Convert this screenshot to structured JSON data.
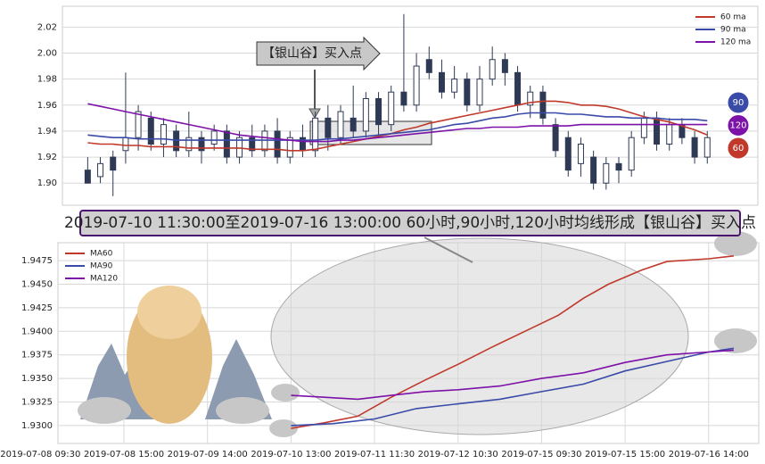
{
  "chart_data": [
    {
      "type": "candlestick",
      "annotation": "【银山谷】买入点",
      "xlim": [
        -2,
        53
      ],
      "ylim": [
        1.883,
        2.036
      ],
      "yticks": [
        {
          "value": 1.9,
          "label": "1.90"
        },
        1.92,
        1.94,
        1.96,
        1.98,
        {
          "value": 2.0,
          "label": "2.00"
        },
        2.02
      ],
      "grid": true,
      "legend": "upper right",
      "candles": {
        "open": [
          1.91,
          1.905,
          1.92,
          1.925,
          1.935,
          1.95,
          1.93,
          1.94,
          1.925,
          1.935,
          1.93,
          1.94,
          1.92,
          1.935,
          1.925,
          1.94,
          1.92,
          1.935,
          1.925,
          1.95,
          1.935,
          1.95,
          1.94,
          1.965,
          1.945,
          1.97,
          1.96,
          1.995,
          1.985,
          1.97,
          1.98,
          1.96,
          1.98,
          1.995,
          1.985,
          1.96,
          1.97,
          1.945,
          1.935,
          1.915,
          1.92,
          1.9,
          1.915,
          1.91,
          1.935,
          1.95,
          1.93,
          1.945,
          1.935,
          1.92
        ],
        "close": [
          1.9,
          1.915,
          1.91,
          1.935,
          1.955,
          1.93,
          1.945,
          1.925,
          1.935,
          1.925,
          1.94,
          1.92,
          1.935,
          1.925,
          1.94,
          1.92,
          1.935,
          1.925,
          1.95,
          1.935,
          1.955,
          1.94,
          1.965,
          1.945,
          1.97,
          1.96,
          1.99,
          1.985,
          1.97,
          1.98,
          1.96,
          1.98,
          1.995,
          1.985,
          1.96,
          1.97,
          1.95,
          1.925,
          1.91,
          1.93,
          1.9,
          1.915,
          1.91,
          1.935,
          1.95,
          1.93,
          1.945,
          1.935,
          1.92,
          1.935
        ],
        "high": [
          1.92,
          1.92,
          1.925,
          1.985,
          1.96,
          1.955,
          1.95,
          1.945,
          1.955,
          1.94,
          1.945,
          1.945,
          1.94,
          1.945,
          1.945,
          1.95,
          1.94,
          1.945,
          1.955,
          1.96,
          1.96,
          1.975,
          1.97,
          1.97,
          1.975,
          2.03,
          2.0,
          2.005,
          1.995,
          1.99,
          1.985,
          1.99,
          2.005,
          2.0,
          1.99,
          1.975,
          1.975,
          1.95,
          1.94,
          1.935,
          1.925,
          1.92,
          1.92,
          1.94,
          1.955,
          1.955,
          1.95,
          1.95,
          1.94,
          1.94
        ],
        "low": [
          1.9,
          1.9,
          1.89,
          1.915,
          1.925,
          1.925,
          1.92,
          1.92,
          1.92,
          1.915,
          1.925,
          1.915,
          1.915,
          1.92,
          1.92,
          1.915,
          1.915,
          1.92,
          1.92,
          1.925,
          1.93,
          1.935,
          1.935,
          1.935,
          1.94,
          1.955,
          1.955,
          1.98,
          1.965,
          1.965,
          1.955,
          1.955,
          1.975,
          1.975,
          1.955,
          1.95,
          1.945,
          1.92,
          1.905,
          1.905,
          1.895,
          1.895,
          1.9,
          1.905,
          1.93,
          1.925,
          1.925,
          1.93,
          1.915,
          1.915
        ]
      },
      "series": [
        {
          "name": "60 ma",
          "color": "#c0392b",
          "tag": 60,
          "values": [
            1.931,
            1.93,
            1.93,
            1.929,
            1.929,
            1.928,
            1.928,
            1.928,
            1.927,
            1.927,
            1.927,
            1.927,
            1.927,
            1.926,
            1.926,
            1.926,
            1.925,
            1.925,
            1.926,
            1.928,
            1.93,
            1.932,
            1.934,
            1.936,
            1.938,
            1.941,
            1.943,
            1.946,
            1.948,
            1.95,
            1.952,
            1.954,
            1.956,
            1.958,
            1.96,
            1.962,
            1.963,
            1.963,
            1.962,
            1.96,
            1.96,
            1.959,
            1.957,
            1.954,
            1.951,
            1.949,
            1.947,
            1.944,
            1.941,
            1.937
          ]
        },
        {
          "name": "90 ma",
          "color": "#3a4aa8",
          "tag": 90,
          "values": [
            1.937,
            1.936,
            1.935,
            1.935,
            1.934,
            1.934,
            1.934,
            1.933,
            1.933,
            1.933,
            1.933,
            1.933,
            1.933,
            1.933,
            1.933,
            1.933,
            1.933,
            1.933,
            1.933,
            1.934,
            1.934,
            1.935,
            1.936,
            1.937,
            1.938,
            1.939,
            1.94,
            1.941,
            1.943,
            1.945,
            1.946,
            1.948,
            1.95,
            1.951,
            1.953,
            1.954,
            1.954,
            1.954,
            1.953,
            1.953,
            1.952,
            1.951,
            1.951,
            1.95,
            1.95,
            1.95,
            1.949,
            1.949,
            1.949,
            1.948
          ]
        },
        {
          "name": "120 ma",
          "color": "#7d12a8",
          "tag": 120,
          "values": [
            1.961,
            1.959,
            1.957,
            1.955,
            1.953,
            1.951,
            1.949,
            1.947,
            1.945,
            1.943,
            1.941,
            1.939,
            1.937,
            1.936,
            1.935,
            1.934,
            1.933,
            1.932,
            1.932,
            1.932,
            1.933,
            1.933,
            1.934,
            1.935,
            1.936,
            1.937,
            1.938,
            1.939,
            1.94,
            1.941,
            1.942,
            1.942,
            1.943,
            1.943,
            1.943,
            1.944,
            1.944,
            1.944,
            1.944,
            1.945,
            1.945,
            1.945,
            1.945,
            1.945,
            1.945,
            1.945,
            1.945,
            1.945,
            1.945,
            1.945
          ]
        }
      ]
    },
    {
      "type": "line",
      "annotation": "2019-07-10 11:30:00至2019-07-16 13:00:00 60小时,90小时,120小时均线形成【银山谷】买入点",
      "xlim": [
        0.21,
        8.6
      ],
      "xticks": [
        {
          "value": 0,
          "label": "2019-07-08 09:30"
        },
        {
          "value": 1,
          "label": "2019-07-08 15:00"
        },
        {
          "value": 2,
          "label": "2019-07-09 14:00"
        },
        {
          "value": 3,
          "label": "2019-07-10 13:00"
        },
        {
          "value": 4,
          "label": "2019-07-11 11:30"
        },
        {
          "value": 5,
          "label": "2019-07-12 10:30"
        },
        {
          "value": 6,
          "label": "2019-07-15 09:30"
        },
        {
          "value": 7,
          "label": "2019-07-15 15:00"
        },
        {
          "value": 8,
          "label": "2019-07-16 14:00"
        }
      ],
      "ylim": [
        1.9281,
        1.9494
      ],
      "yticks": [
        {
          "value": 1.93,
          "label": "1.9300"
        },
        1.9325,
        {
          "value": 1.935,
          "label": "1.9350"
        },
        1.9375,
        {
          "value": 1.94,
          "label": "1.9400"
        },
        1.9425,
        {
          "value": 1.945,
          "label": "1.9450"
        },
        1.9475
      ],
      "grid": true,
      "legend": "upper left",
      "series": [
        {
          "name": "MA60",
          "color": "#c0392b",
          "x": [
            3.0,
            3.4,
            3.8,
            4.2,
            4.6,
            5.0,
            5.4,
            5.8,
            6.2,
            6.5,
            6.8,
            7.2,
            7.5,
            8.0,
            8.3
          ],
          "values": [
            1.9297,
            1.9303,
            1.931,
            1.933,
            1.9348,
            1.9365,
            1.9383,
            1.94,
            1.9417,
            1.9435,
            1.945,
            1.9465,
            1.9474,
            1.9477,
            1.948
          ]
        },
        {
          "name": "MA90",
          "color": "#3a4aa8",
          "x": [
            3.0,
            3.5,
            4.0,
            4.5,
            5.0,
            5.5,
            6.0,
            6.5,
            7.0,
            7.5,
            8.0,
            8.3
          ],
          "values": [
            1.93,
            1.9302,
            1.9307,
            1.9318,
            1.9323,
            1.9328,
            1.9336,
            1.9344,
            1.9358,
            1.9368,
            1.9378,
            1.9382
          ]
        },
        {
          "name": "MA120",
          "color": "#7d12a8",
          "x": [
            3.0,
            3.4,
            3.8,
            4.2,
            4.6,
            5.0,
            5.5,
            6.0,
            6.5,
            7.0,
            7.5,
            8.0,
            8.3
          ],
          "values": [
            1.9332,
            1.933,
            1.9328,
            1.9332,
            1.9336,
            1.9338,
            1.9342,
            1.935,
            1.9356,
            1.9367,
            1.9375,
            1.9378,
            1.938
          ]
        }
      ]
    }
  ]
}
